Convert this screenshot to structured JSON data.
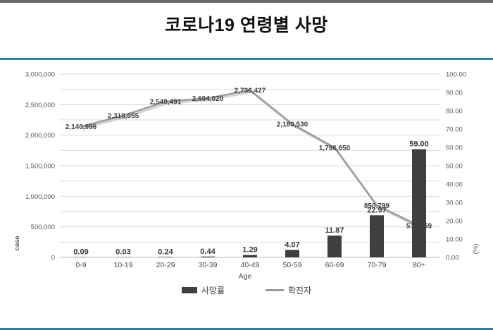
{
  "title": "코로나19 연령별 사망",
  "colors": {
    "accent_border": "#2e7e9e",
    "top_bar": "#6b6b6b",
    "bar_fill": "#3f3f3f",
    "line_stroke": "#9b9b9b",
    "gridline": "#dadada",
    "tick_text": "#595959"
  },
  "chart_data": {
    "type": "bar",
    "subtype": "combo-bar-line",
    "categories": [
      "0-9",
      "10-19",
      "20-29",
      "30-39",
      "40-49",
      "50-59",
      "60-69",
      "70-79",
      "80+"
    ],
    "series": [
      {
        "name": "사망률",
        "type": "bar",
        "axis": "right",
        "values": [
          0.09,
          0.03,
          0.24,
          0.44,
          1.29,
          4.07,
          11.87,
          22.97,
          59.0
        ],
        "labels": [
          "0.09",
          "0.03",
          "0.24",
          "0.44",
          "1.29",
          "4.07",
          "11.87",
          "22.97",
          "59.00"
        ]
      },
      {
        "name": "확진자",
        "type": "line",
        "axis": "left",
        "values": [
          2140996,
          2318055,
          2549491,
          2604020,
          2736427,
          2180530,
          1796650,
          850799,
          517769
        ],
        "labels": [
          "2,140,996",
          "2,318,055",
          "2,549,491",
          "2,604,020",
          "2,736,427",
          "2,180,530",
          "1,796,650",
          "850,799",
          "517,769"
        ]
      }
    ],
    "xlabel": "Age",
    "left_axis": {
      "label": "case",
      "min": 0,
      "max": 3000000,
      "tick_step": 500000,
      "grid_step": 250000,
      "ticks": [
        "3,000,000",
        "2,500,000",
        "2,000,000",
        "1,500,000",
        "1,000,000",
        "500,000",
        "0"
      ]
    },
    "right_axis": {
      "label": "(%)",
      "min": 0,
      "max": 100,
      "tick_step": 10,
      "ticks": [
        "100.00",
        "90.00",
        "80.00",
        "70.00",
        "60.00",
        "50.00",
        "40.00",
        "30.00",
        "20.00",
        "10.00",
        "0.00"
      ]
    },
    "legend": [
      {
        "label": "사망률",
        "swatch": "bar"
      },
      {
        "label": "확진자",
        "swatch": "line"
      }
    ],
    "grid": true,
    "legend_position": "bottom"
  }
}
